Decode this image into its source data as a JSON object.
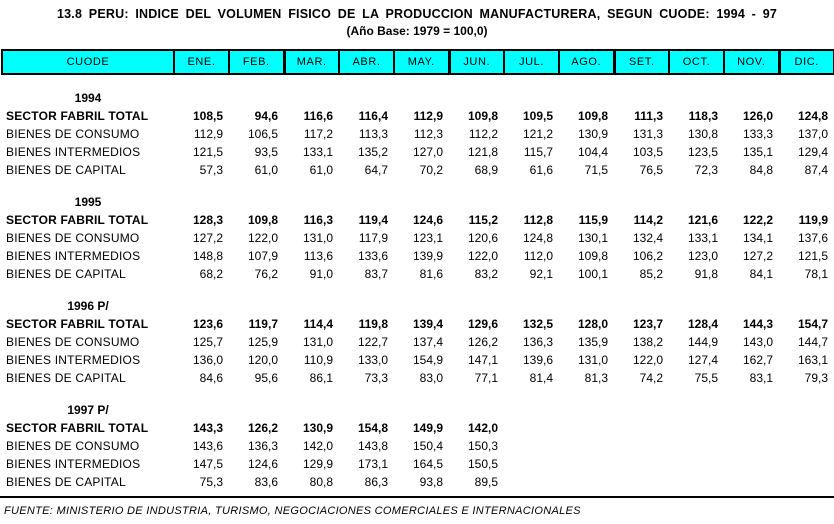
{
  "title": "13.8  PERU: INDICE  DEL  VOLUMEN  FISICO  DE  LA  PRODUCCION  MANUFACTURERA,  SEGUN CUODE:  1994 - 97",
  "subtitle": "(Año Base: 1979 = 100,0)",
  "colors": {
    "header_bg": "#00FFFF",
    "border": "#000000",
    "page_bg": "#FFFFFF"
  },
  "table": {
    "columns": [
      "CUODE",
      "ENE.",
      "FEB.",
      "MAR.",
      "ABR.",
      "MAY.",
      "JUN.",
      "JUL.",
      "AGO.",
      "SET.",
      "OCT.",
      "NOV.",
      "DIC."
    ],
    "blocks": [
      {
        "year": "1994",
        "rows": [
          {
            "label": "SECTOR FABRIL TOTAL",
            "bold": true,
            "values": [
              "108,5",
              "94,6",
              "116,6",
              "116,4",
              "112,9",
              "109,8",
              "109,5",
              "109,8",
              "111,3",
              "118,3",
              "126,0",
              "124,8"
            ]
          },
          {
            "label": "BIENES DE CONSUMO",
            "bold": false,
            "values": [
              "112,9",
              "106,5",
              "117,2",
              "113,3",
              "112,3",
              "112,2",
              "121,2",
              "130,9",
              "131,3",
              "130,8",
              "133,3",
              "137,0"
            ]
          },
          {
            "label": "BIENES INTERMEDIOS",
            "bold": false,
            "values": [
              "121,5",
              "93,5",
              "133,1",
              "135,2",
              "127,0",
              "121,8",
              "115,7",
              "104,4",
              "103,5",
              "123,5",
              "135,1",
              "129,4"
            ]
          },
          {
            "label": "BIENES DE CAPITAL",
            "bold": false,
            "values": [
              "57,3",
              "61,0",
              "61,0",
              "64,7",
              "70,2",
              "68,9",
              "61,6",
              "71,5",
              "76,5",
              "72,3",
              "84,8",
              "87,4"
            ]
          }
        ]
      },
      {
        "year": "1995",
        "rows": [
          {
            "label": "SECTOR FABRIL TOTAL",
            "bold": true,
            "values": [
              "128,3",
              "109,8",
              "116,3",
              "119,4",
              "124,6",
              "115,2",
              "112,8",
              "115,9",
              "114,2",
              "121,6",
              "122,2",
              "119,9"
            ]
          },
          {
            "label": "BIENES DE CONSUMO",
            "bold": false,
            "values": [
              "127,2",
              "122,0",
              "131,0",
              "117,9",
              "123,1",
              "120,6",
              "124,8",
              "130,1",
              "132,4",
              "133,1",
              "134,1",
              "137,6"
            ]
          },
          {
            "label": "BIENES INTERMEDIOS",
            "bold": false,
            "values": [
              "148,8",
              "107,9",
              "113,6",
              "133,6",
              "139,9",
              "122,0",
              "112,0",
              "109,8",
              "106,2",
              "123,0",
              "127,2",
              "121,5"
            ]
          },
          {
            "label": "BIENES DE CAPITAL",
            "bold": false,
            "values": [
              "68,2",
              "76,2",
              "91,0",
              "83,7",
              "81,6",
              "83,2",
              "92,1",
              "100,1",
              "85,2",
              "91,8",
              "84,1",
              "78,1"
            ]
          }
        ]
      },
      {
        "year": "1996 P/",
        "rows": [
          {
            "label": "SECTOR FABRIL TOTAL",
            "bold": true,
            "values": [
              "123,6",
              "119,7",
              "114,4",
              "119,8",
              "139,4",
              "129,6",
              "132,5",
              "128,0",
              "123,7",
              "128,4",
              "144,3",
              "154,7"
            ]
          },
          {
            "label": "BIENES DE CONSUMO",
            "bold": false,
            "values": [
              "125,7",
              "125,9",
              "131,0",
              "122,7",
              "137,4",
              "126,2",
              "136,3",
              "135,9",
              "138,2",
              "144,9",
              "143,0",
              "144,7"
            ]
          },
          {
            "label": "BIENES INTERMEDIOS",
            "bold": false,
            "values": [
              "136,0",
              "120,0",
              "110,9",
              "133,0",
              "154,9",
              "147,1",
              "139,6",
              "131,0",
              "122,0",
              "127,4",
              "162,7",
              "163,1"
            ]
          },
          {
            "label": "BIENES DE CAPITAL",
            "bold": false,
            "values": [
              "84,6",
              "95,6",
              "86,1",
              "73,3",
              "83,0",
              "77,1",
              "81,4",
              "81,3",
              "74,2",
              "75,5",
              "83,1",
              "79,3"
            ]
          }
        ]
      },
      {
        "year": "1997 P/",
        "rows": [
          {
            "label": "SECTOR FABRIL TOTAL",
            "bold": true,
            "values": [
              "143,3",
              "126,2",
              "130,9",
              "154,8",
              "149,9",
              "142,0",
              "",
              "",
              "",
              "",
              "",
              ""
            ]
          },
          {
            "label": "BIENES DE CONSUMO",
            "bold": false,
            "values": [
              "143,6",
              "136,3",
              "142,0",
              "143,8",
              "150,4",
              "150,3",
              "",
              "",
              "",
              "",
              "",
              ""
            ]
          },
          {
            "label": "BIENES INTERMEDIOS",
            "bold": false,
            "values": [
              "147,5",
              "124,6",
              "129,9",
              "173,1",
              "164,5",
              "150,5",
              "",
              "",
              "",
              "",
              "",
              ""
            ]
          },
          {
            "label": "BIENES DE CAPITAL",
            "bold": false,
            "values": [
              "75,3",
              "83,6",
              "80,8",
              "86,3",
              "93,8",
              "89,5",
              "",
              "",
              "",
              "",
              "",
              ""
            ]
          }
        ]
      }
    ]
  },
  "footer": {
    "source": "FUENTE: MINISTERIO DE INDUSTRIA, TURISMO, NEGOCIACIONES COMERCIALES E INTERNACIONALES"
  }
}
